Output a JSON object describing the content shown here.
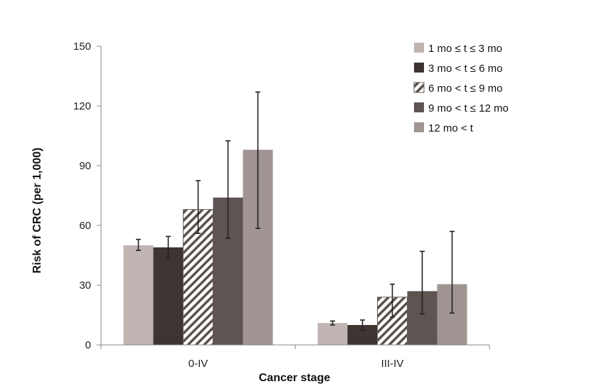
{
  "chart_data": {
    "type": "bar",
    "title": "",
    "xlabel": "Cancer stage",
    "ylabel": "Risk of CRC (per 1,000)",
    "ylim": [
      0,
      150
    ],
    "yticks": [
      0,
      30,
      60,
      90,
      120,
      150
    ],
    "categories": [
      "0-IV",
      "III-IV"
    ],
    "legend_position": "top-right",
    "series": [
      {
        "name": "1 mo ≤ t ≤ 3 mo",
        "color": "#c0b5b2",
        "pattern": "solid",
        "values": [
          50,
          11
        ],
        "err_low": [
          47.5,
          10.0
        ],
        "err_high": [
          53.0,
          12.0
        ]
      },
      {
        "name": "3 mo < t ≤ 6 mo",
        "color": "#3e3432",
        "pattern": "solid",
        "values": [
          49,
          10
        ],
        "err_low": [
          43.5,
          7.5
        ],
        "err_high": [
          54.5,
          12.5
        ]
      },
      {
        "name": "6 mo < t ≤ 9 mo",
        "color": "#ffffff",
        "pattern": "hatched",
        "values": [
          68,
          24
        ],
        "err_low": [
          56.0,
          14.0
        ],
        "err_high": [
          82.5,
          30.5
        ]
      },
      {
        "name": "9 mo < t ≤ 12 mo",
        "color": "#5e5451",
        "pattern": "solid",
        "values": [
          74,
          27
        ],
        "err_low": [
          53.5,
          15.5
        ],
        "err_high": [
          102.5,
          47.0
        ]
      },
      {
        "name": "12 mo < t",
        "color": "#a09592",
        "pattern": "solid",
        "values": [
          98,
          30.5
        ],
        "err_low": [
          58.5,
          16.0
        ],
        "err_high": [
          127.0,
          57.0
        ]
      }
    ]
  }
}
